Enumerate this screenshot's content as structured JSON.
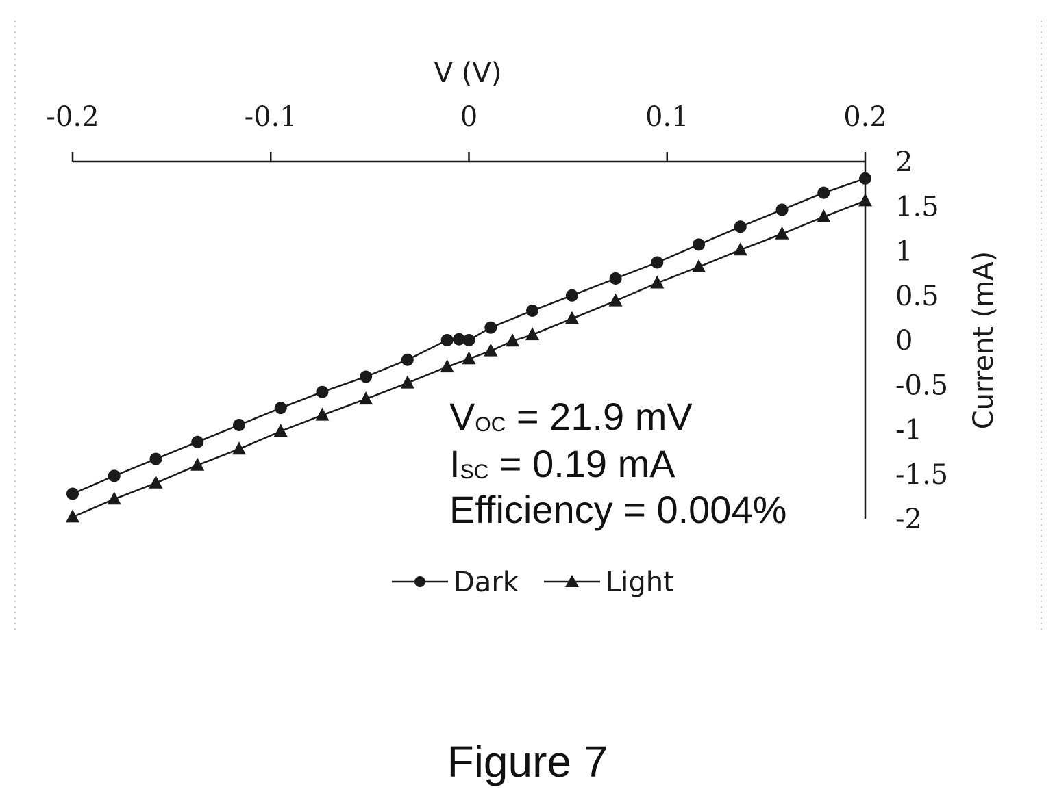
{
  "chart_data": {
    "type": "line",
    "xlabel": "V (V)",
    "ylabel": "Current (mA)",
    "xlim": [
      -0.2,
      0.2
    ],
    "ylim": [
      -2,
      2
    ],
    "x_ticks": [
      "-0.2",
      "-0.1",
      "0",
      "0.1",
      "0.2"
    ],
    "y_ticks": [
      "2",
      "1.5",
      "1",
      "0.5",
      "0",
      "-0.5",
      "-1",
      "-1.5",
      "-2"
    ],
    "x_axis_position": "top",
    "y_axis_position": "right",
    "grid": false,
    "legend_position": "bottom",
    "series": [
      {
        "name": "Dark",
        "marker": "circle",
        "color": "#1a1a1a",
        "points": [
          [
            -0.2,
            -1.72
          ],
          [
            -0.179,
            -1.52
          ],
          [
            -0.158,
            -1.33
          ],
          [
            -0.137,
            -1.14
          ],
          [
            -0.116,
            -0.95
          ],
          [
            -0.095,
            -0.76
          ],
          [
            -0.074,
            -0.58
          ],
          [
            -0.052,
            -0.41
          ],
          [
            -0.031,
            -0.22
          ],
          [
            -0.011,
            0.0
          ],
          [
            -0.005,
            0.01
          ],
          [
            0.0,
            0.0
          ],
          [
            0.011,
            0.14
          ],
          [
            0.032,
            0.33
          ],
          [
            0.052,
            0.5
          ],
          [
            0.074,
            0.69
          ],
          [
            0.095,
            0.87
          ],
          [
            0.116,
            1.07
          ],
          [
            0.137,
            1.27
          ],
          [
            0.158,
            1.46
          ],
          [
            0.179,
            1.65
          ],
          [
            0.2,
            1.81
          ]
        ]
      },
      {
        "name": "Light",
        "marker": "triangle",
        "color": "#1a1a1a",
        "points": [
          [
            -0.2,
            -1.98
          ],
          [
            -0.179,
            -1.78
          ],
          [
            -0.158,
            -1.6
          ],
          [
            -0.137,
            -1.4
          ],
          [
            -0.116,
            -1.22
          ],
          [
            -0.095,
            -1.02
          ],
          [
            -0.074,
            -0.84
          ],
          [
            -0.052,
            -0.66
          ],
          [
            -0.031,
            -0.48
          ],
          [
            -0.011,
            -0.3
          ],
          [
            0.0,
            -0.21
          ],
          [
            0.011,
            -0.12
          ],
          [
            0.022,
            -0.01
          ],
          [
            0.032,
            0.06
          ],
          [
            0.052,
            0.24
          ],
          [
            0.074,
            0.44
          ],
          [
            0.095,
            0.64
          ],
          [
            0.116,
            0.82
          ],
          [
            0.137,
            1.01
          ],
          [
            0.158,
            1.19
          ],
          [
            0.179,
            1.38
          ],
          [
            0.2,
            1.56
          ]
        ]
      }
    ],
    "annotations": {
      "voc": {
        "main": "V",
        "sub": "OC",
        "rest": " = 21.9 mV"
      },
      "isc": {
        "main": "I",
        "sub": "SC",
        "rest": " = 0.19 mA"
      },
      "efficiency": "Efficiency = 0.004%"
    }
  },
  "caption": "Figure 7"
}
